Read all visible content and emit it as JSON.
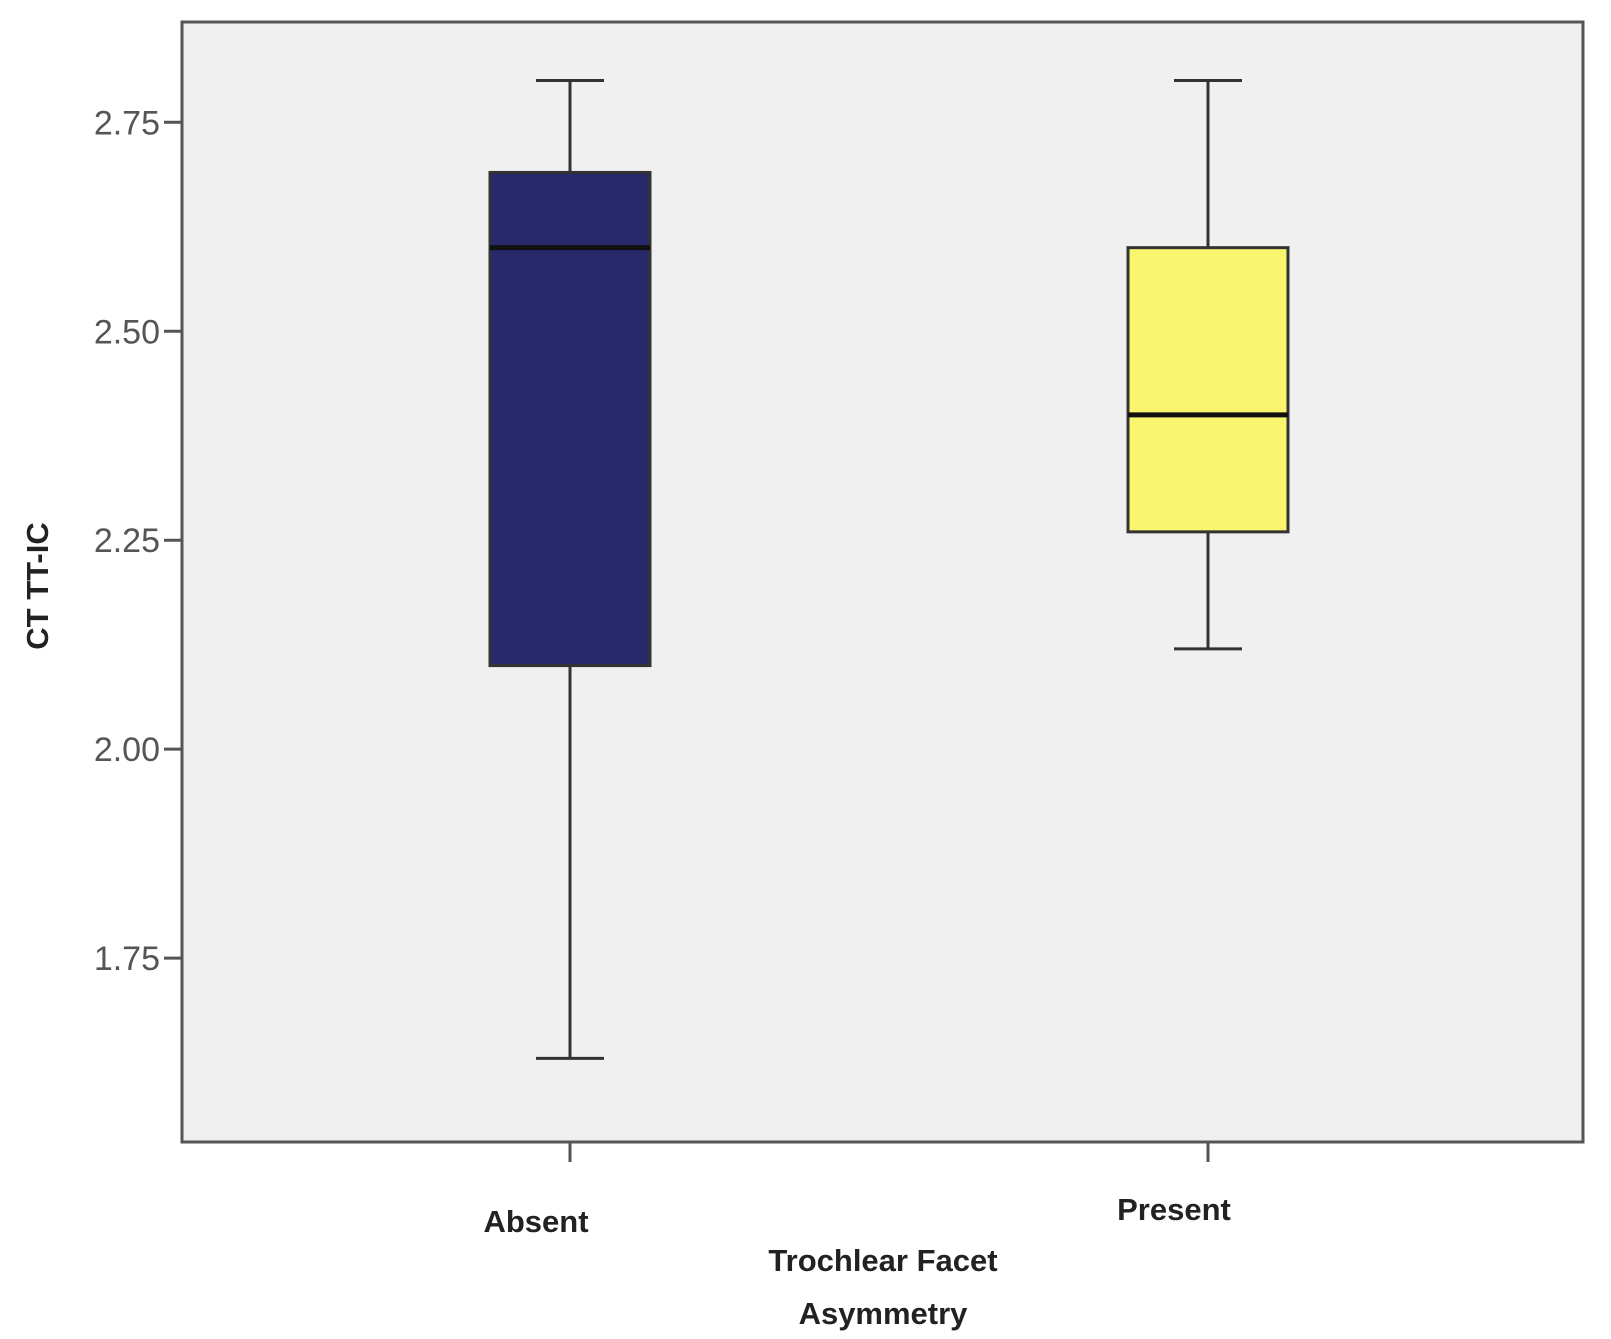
{
  "chart_data": {
    "type": "box",
    "xlabel": [
      "Trochlear Facet",
      "Asymmetry"
    ],
    "ylabel": "CT TT-IC",
    "ylim": [
      1.53,
      2.87
    ],
    "yticks": [
      "1.75",
      "2.00",
      "2.25",
      "2.50",
      "2.75"
    ],
    "grid": false,
    "categories": [
      "Absent",
      "Present"
    ],
    "boxes": [
      {
        "category": "Absent",
        "min": 1.63,
        "q1": 2.1,
        "median": 2.6,
        "q3": 2.69,
        "max": 2.8,
        "color": "#27296b"
      },
      {
        "category": "Present",
        "min": 2.12,
        "q1": 2.26,
        "median": 2.4,
        "q3": 2.6,
        "max": 2.8,
        "color": "#f9f56f"
      }
    ],
    "colors": {
      "plot_background": "#f0f0f0",
      "axis_line": "#555555",
      "whisker": "#333333"
    }
  }
}
